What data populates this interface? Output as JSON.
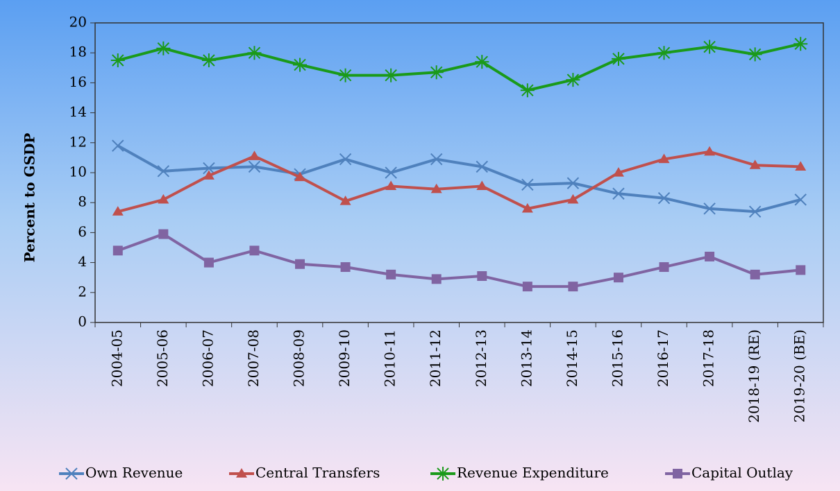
{
  "chart_data": {
    "type": "line",
    "y_label": "Percent to GSDP",
    "categories": [
      "2004-05",
      "2005-06",
      "2006-07",
      "2007-08",
      "2008-09",
      "2009-10",
      "2010-11",
      "2011-12",
      "2012-13",
      "2013-14",
      "2014-15",
      "2015-16",
      "2016-17",
      "2017-18",
      "2018-19 (RE)",
      "2019-20 (BE)"
    ],
    "series": [
      {
        "name": "Own Revenue",
        "color": "#4f81bd",
        "marker": "x",
        "values": [
          11.8,
          10.1,
          10.3,
          10.4,
          9.9,
          10.9,
          10.0,
          10.9,
          10.4,
          9.2,
          9.3,
          8.6,
          8.3,
          7.6,
          7.4,
          8.2
        ]
      },
      {
        "name": "Central Transfers",
        "color": "#c0504d",
        "marker": "triangle",
        "values": [
          7.4,
          8.2,
          9.8,
          11.1,
          9.7,
          8.1,
          9.1,
          8.9,
          9.1,
          7.6,
          8.2,
          10.0,
          10.9,
          11.4,
          10.5,
          10.4
        ]
      },
      {
        "name": "Revenue Expenditure",
        "color": "#1a9a1a",
        "marker": "star",
        "values": [
          17.5,
          18.3,
          17.5,
          18.0,
          17.2,
          16.5,
          16.5,
          16.7,
          17.4,
          15.5,
          16.2,
          17.6,
          18.0,
          18.4,
          17.9,
          18.6
        ]
      },
      {
        "name": "Capital Outlay",
        "color": "#8064a2",
        "marker": "square",
        "values": [
          4.8,
          5.9,
          4.0,
          4.8,
          3.9,
          3.7,
          3.2,
          2.9,
          3.1,
          2.4,
          2.4,
          3.0,
          3.7,
          4.4,
          3.2,
          3.5
        ]
      }
    ],
    "ylim": [
      0,
      20
    ],
    "yticks": [
      0,
      2,
      4,
      6,
      8,
      10,
      12,
      14,
      16,
      18,
      20
    ],
    "grid": false,
    "legend": "bottom"
  }
}
